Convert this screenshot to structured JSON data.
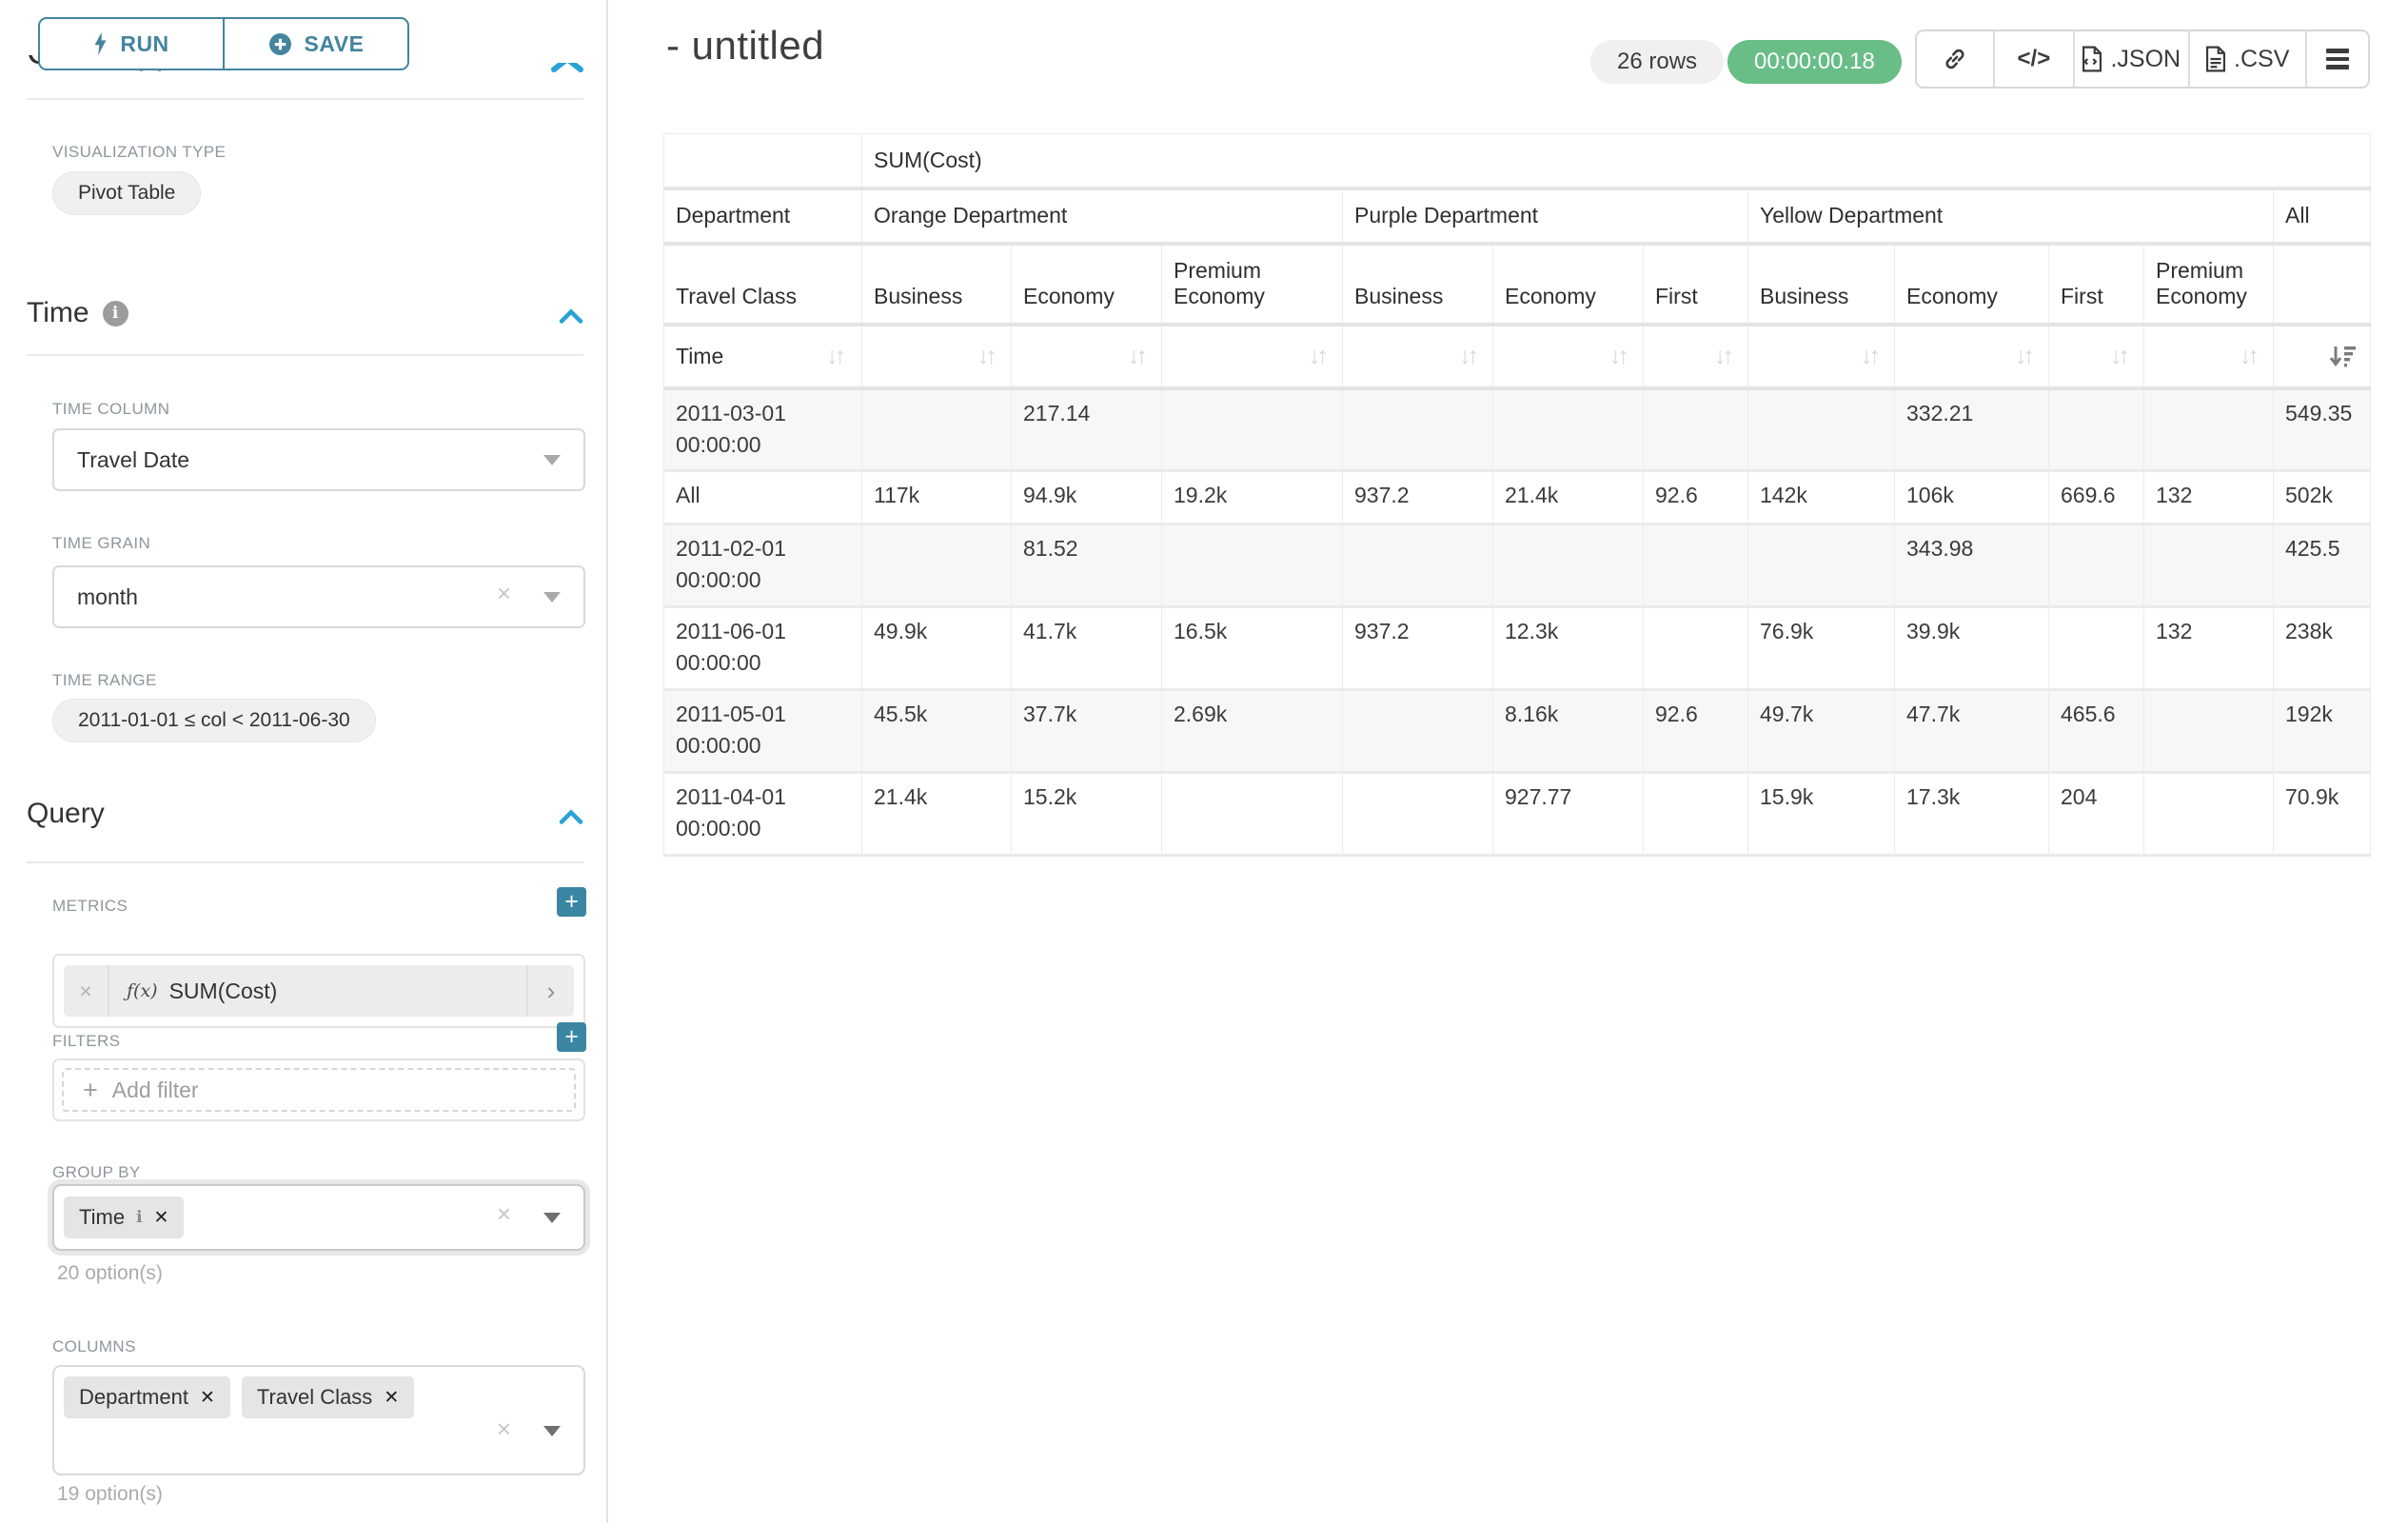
{
  "sidebar": {
    "run_button": "RUN",
    "save_button": "SAVE",
    "scrolled_section_title": "Chart Type",
    "visualization_type_label": "VISUALIZATION TYPE",
    "visualization_type_value": "Pivot Table",
    "time": {
      "title": "Time",
      "time_column_label": "TIME COLUMN",
      "time_column_value": "Travel Date",
      "time_grain_label": "TIME GRAIN",
      "time_grain_value": "month",
      "time_range_label": "TIME RANGE",
      "time_range_value": "2011-01-01 ≤ col < 2011-06-30"
    },
    "query": {
      "title": "Query",
      "metrics_label": "METRICS",
      "metric_fx": "ƒ(x)",
      "metric_value": "SUM(Cost)",
      "filters_label": "FILTERS",
      "add_filter_label": "Add filter",
      "group_by_label": "GROUP BY",
      "group_by_chip": "Time",
      "group_by_options_hint": "20 option(s)",
      "columns_label": "COLUMNS",
      "columns_chip_1": "Department",
      "columns_chip_2": "Travel Class",
      "columns_options_hint": "19 option(s)"
    }
  },
  "main": {
    "title": "- untitled",
    "rows_badge": "26 rows",
    "query_duration": "00:00:00.18",
    "code_button_label": "</>",
    "export_json_label": ".JSON",
    "export_csv_label": ".CSV"
  },
  "colors": {
    "accent_teal": "#44849f",
    "add_button_teal": "#3a86a3",
    "collapse_caret_blue": "#29a3d7",
    "duration_green": "#69bd87"
  },
  "pivot_table": {
    "metric_header": "SUM(Cost)",
    "corner": {
      "department_label": "Department",
      "travel_class_label": "Travel Class",
      "time_label": "Time"
    },
    "col_groups": [
      {
        "label": "Orange Department",
        "children": [
          "Business",
          "Economy",
          "Premium Economy"
        ]
      },
      {
        "label": "Purple Department",
        "children": [
          "Business",
          "Economy",
          "First"
        ]
      },
      {
        "label": "Yellow Department",
        "children": [
          "Business",
          "Economy",
          "First",
          "Premium Economy"
        ]
      },
      {
        "label": "All",
        "children": [
          ""
        ]
      }
    ],
    "sort": {
      "active_column": "All",
      "direction": "desc"
    },
    "rows": [
      {
        "label": "2011-03-01 00:00:00",
        "values": [
          "",
          "217.14",
          "",
          "",
          "",
          "",
          "",
          "332.21",
          "",
          "",
          "549.35"
        ]
      },
      {
        "label": "All",
        "values": [
          "117k",
          "94.9k",
          "19.2k",
          "937.2",
          "21.4k",
          "92.6",
          "142k",
          "106k",
          "669.6",
          "132",
          "502k"
        ]
      },
      {
        "label": "2011-02-01 00:00:00",
        "values": [
          "",
          "81.52",
          "",
          "",
          "",
          "",
          "",
          "343.98",
          "",
          "",
          "425.5"
        ]
      },
      {
        "label": "2011-06-01 00:00:00",
        "values": [
          "49.9k",
          "41.7k",
          "16.5k",
          "937.2",
          "12.3k",
          "",
          "76.9k",
          "39.9k",
          "",
          "132",
          "238k"
        ]
      },
      {
        "label": "2011-05-01 00:00:00",
        "values": [
          "45.5k",
          "37.7k",
          "2.69k",
          "",
          "8.16k",
          "92.6",
          "49.7k",
          "47.7k",
          "465.6",
          "",
          "192k"
        ]
      },
      {
        "label": "2011-04-01 00:00:00",
        "values": [
          "21.4k",
          "15.2k",
          "",
          "",
          "927.77",
          "",
          "15.9k",
          "17.3k",
          "204",
          "",
          "70.9k"
        ]
      }
    ]
  }
}
